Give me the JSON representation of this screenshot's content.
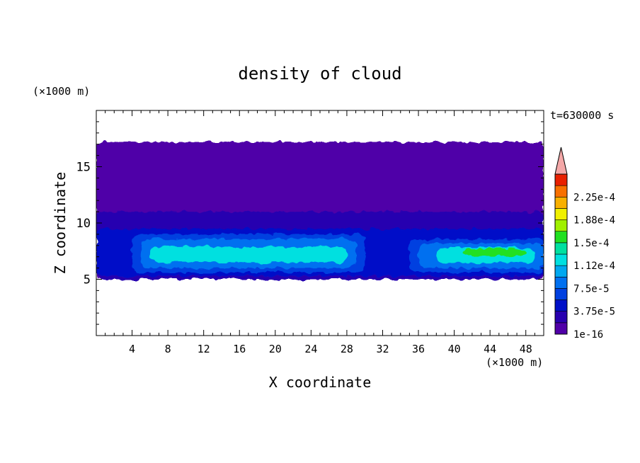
{
  "chart_data": {
    "type": "heatmap",
    "title": "density of cloud",
    "xlabel": "X coordinate",
    "ylabel": "Z coordinate",
    "x_unit": "(×1000 m)",
    "y_unit": "(×1000 m)",
    "time_label": "t=630000 s",
    "xlim": [
      0,
      50
    ],
    "ylim": [
      0,
      20
    ],
    "x_ticks": [
      4,
      8,
      12,
      16,
      20,
      24,
      28,
      32,
      36,
      40,
      44,
      48
    ],
    "y_ticks": [
      5,
      10,
      15
    ],
    "colorbar": {
      "levels": [
        1e-16,
        1.875e-05,
        3.75e-05,
        5.625e-05,
        7.5e-05,
        9.375e-05,
        0.0001125,
        0.00013125,
        0.00015,
        0.00016875,
        0.0001875,
        0.00020625,
        0.000225,
        0.00024375
      ],
      "labels": [
        "1e-16",
        "3.75e-5",
        "7.5e-5",
        "1.12e-4",
        "1.5e-4",
        "1.88e-4",
        "2.25e-4"
      ],
      "colors": [
        "#5000a8",
        "#2800b0",
        "#0010c8",
        "#0040e0",
        "#0070f0",
        "#00a8f0",
        "#00e0e0",
        "#00e0a0",
        "#20e020",
        "#a0f000",
        "#f0f000",
        "#f8b000",
        "#f87000",
        "#e82000"
      ],
      "over_color": "#f4a8a8"
    },
    "field": [
      {
        "x": [
          0,
          50
        ],
        "z": [
          5.0,
          17.2
        ],
        "value": 1e-16
      },
      {
        "x": [
          0,
          50
        ],
        "z": [
          5.0,
          11.0
        ],
        "value": 1.875e-05
      },
      {
        "x": [
          0,
          50
        ],
        "z": [
          5.3,
          9.5
        ],
        "value": 3.75e-05
      },
      {
        "x": [
          4,
          30
        ],
        "z": [
          5.6,
          9.0
        ],
        "value": 5.625e-05
      },
      {
        "x": [
          35,
          50
        ],
        "z": [
          5.6,
          8.6
        ],
        "value": 5.625e-05
      },
      {
        "x": [
          5,
          29
        ],
        "z": [
          6.0,
          8.6
        ],
        "value": 7.5e-05
      },
      {
        "x": [
          36,
          50
        ],
        "z": [
          6.0,
          8.2
        ],
        "value": 7.5e-05
      },
      {
        "x": [
          6,
          28
        ],
        "z": [
          6.5,
          7.9
        ],
        "value": 0.0001125
      },
      {
        "x": [
          38,
          49
        ],
        "z": [
          6.4,
          7.8
        ],
        "value": 0.0001125
      },
      {
        "x": [
          41,
          48
        ],
        "z": [
          7.1,
          7.7
        ],
        "value": 0.00015
      }
    ]
  }
}
